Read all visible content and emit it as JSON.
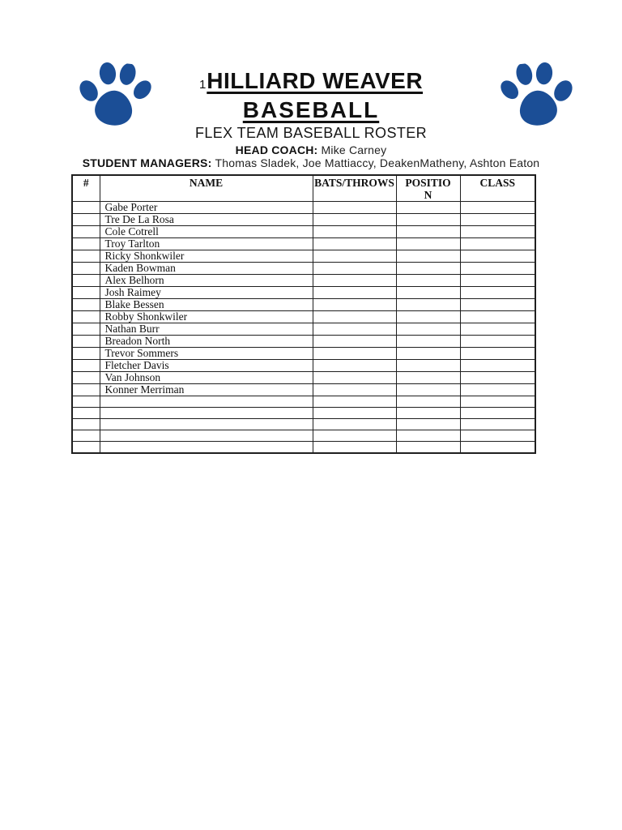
{
  "page": {
    "background": "#ffffff",
    "list_marker": "1",
    "title_line1": "HILLIARD WEAVER",
    "title_line2": "BASEBALL",
    "subtitle": "FLEX TEAM BASEBALL ROSTER",
    "head_coach_label": "HEAD COACH:",
    "head_coach_value": "Mike Carney",
    "student_managers_label": "STUDENT MANAGERS:",
    "student_managers_value": "Thomas Sladek, Joe Mattiaccy, DeakenMatheny, Ashton Eaton"
  },
  "logo": {
    "icon": "paw-print-icon",
    "color": "#1b4e96"
  },
  "table": {
    "columns": [
      "#",
      "NAME",
      "BATS/THROWS",
      "POSITION",
      "CLASS"
    ],
    "column_keys": [
      "number",
      "name",
      "bats-throws",
      "position",
      "class"
    ],
    "rows": [
      [
        "",
        "Gabe Porter",
        "",
        "",
        ""
      ],
      [
        "",
        "Tre De La Rosa",
        "",
        "",
        ""
      ],
      [
        "",
        "Cole Cotrell",
        "",
        "",
        ""
      ],
      [
        "",
        "Troy Tarlton",
        "",
        "",
        ""
      ],
      [
        "",
        "Ricky Shonkwiler",
        "",
        "",
        ""
      ],
      [
        "",
        "Kaden Bowman",
        "",
        "",
        ""
      ],
      [
        "",
        "Alex Belhorn",
        "",
        "",
        ""
      ],
      [
        "",
        "Josh Raimey",
        "",
        "",
        ""
      ],
      [
        "",
        "Blake Bessen",
        "",
        "",
        ""
      ],
      [
        "",
        "Robby Shonkwiler",
        "",
        "",
        ""
      ],
      [
        "",
        "Nathan Burr",
        "",
        "",
        ""
      ],
      [
        "",
        "Breadon North",
        "",
        "",
        ""
      ],
      [
        "",
        "Trevor Sommers",
        "",
        "",
        ""
      ],
      [
        "",
        "Fletcher Davis",
        "",
        "",
        ""
      ],
      [
        "",
        "Van Johnson",
        "",
        "",
        ""
      ],
      [
        "",
        "Konner Merriman",
        "",
        "",
        ""
      ],
      [
        "",
        "",
        "",
        "",
        ""
      ],
      [
        "",
        "",
        "",
        "",
        ""
      ],
      [
        "",
        "",
        "",
        "",
        ""
      ],
      [
        "",
        "",
        "",
        "",
        ""
      ],
      [
        "",
        "",
        "",
        "",
        ""
      ]
    ]
  }
}
